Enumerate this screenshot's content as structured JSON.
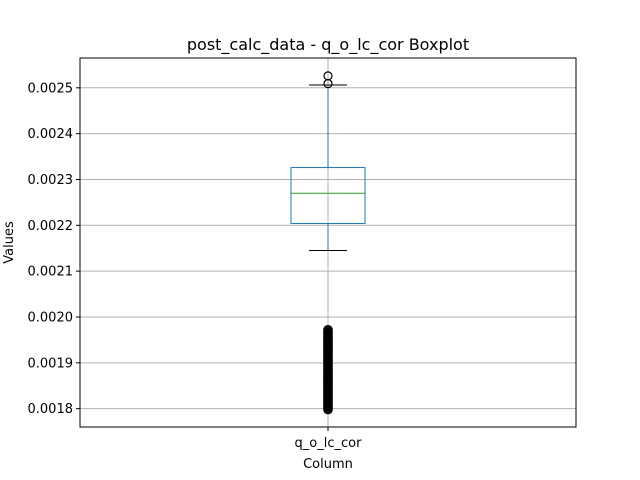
{
  "chart_data": {
    "type": "boxplot",
    "title": "post_calc_data - q_o_lc_cor Boxplot",
    "xlabel": "Column",
    "ylabel": "Values",
    "categories": [
      "q_o_lc_cor"
    ],
    "ylim": [
      0.00176,
      0.002565
    ],
    "yticks": [
      0.0018,
      0.0019,
      0.002,
      0.0021,
      0.0022,
      0.0023,
      0.0024,
      0.0025
    ],
    "ytick_labels": [
      "0.0018",
      "0.0019",
      "0.0020",
      "0.0021",
      "0.0022",
      "0.0023",
      "0.0024",
      "0.0025"
    ],
    "grid": true,
    "boxes": [
      {
        "name": "q_o_lc_cor",
        "whisker_low": 0.002145,
        "q1": 0.002204,
        "median": 0.00227,
        "q3": 0.002326,
        "whisker_high": 0.002506,
        "outliers_high": [
          0.002526,
          0.002509
        ],
        "outliers_low_range": [
          0.001798,
          0.001972
        ]
      }
    ],
    "colors": {
      "box": "#1f77b4",
      "median": "#2ca02c",
      "whisker_cap": "#000000",
      "outlier": "#000000",
      "grid": "#b0b0b0"
    }
  }
}
